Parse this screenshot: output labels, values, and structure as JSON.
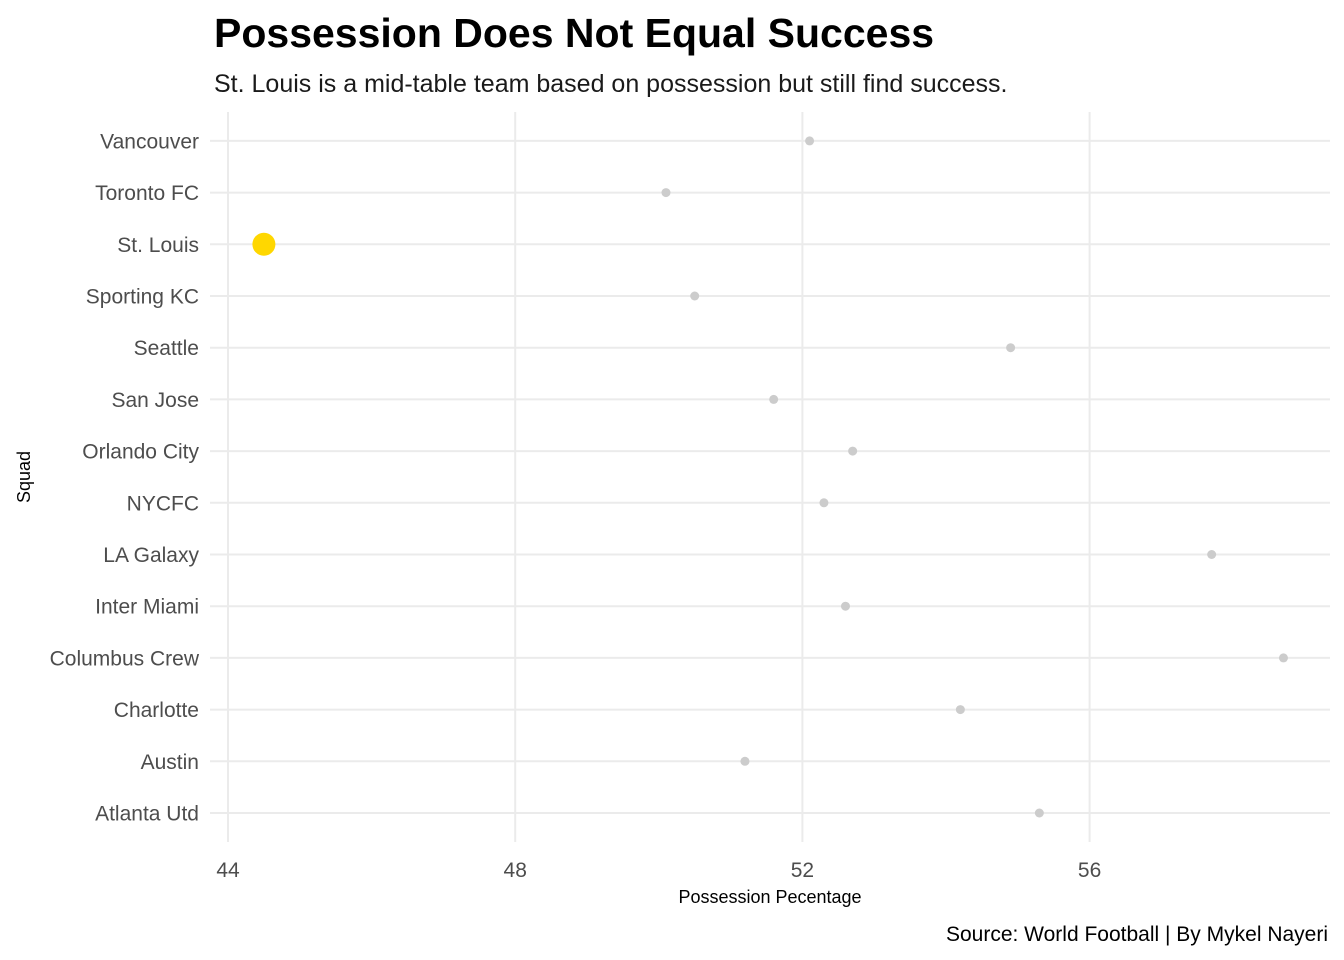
{
  "chart_data": {
    "type": "scatter",
    "title": "Possession Does Not Equal Success",
    "subtitle": "St. Louis is a mid-table team based on possession but still find success.",
    "xlabel": "Possession Pecentage",
    "ylabel": "Squad",
    "caption": "Source: World Football | By Mykel Nayeri",
    "xlim": [
      43.9,
      59.3
    ],
    "xticks": [
      44,
      48,
      52,
      56
    ],
    "grid": true,
    "colors": {
      "highlight": "#FFD700",
      "default": "#CCCCCC",
      "grid": "#EBEBEB"
    },
    "highlight": "St. Louis",
    "categories": [
      "Atlanta Utd",
      "Austin",
      "Charlotte",
      "Columbus Crew",
      "Inter Miami",
      "LA Galaxy",
      "NYCFC",
      "Orlando City",
      "San Jose",
      "Seattle",
      "Sporting KC",
      "St. Louis",
      "Toronto FC",
      "Vancouver"
    ],
    "values": [
      55.3,
      51.2,
      54.2,
      58.7,
      52.6,
      57.7,
      52.3,
      52.7,
      51.6,
      54.9,
      50.5,
      44.5,
      50.1,
      52.1
    ]
  }
}
